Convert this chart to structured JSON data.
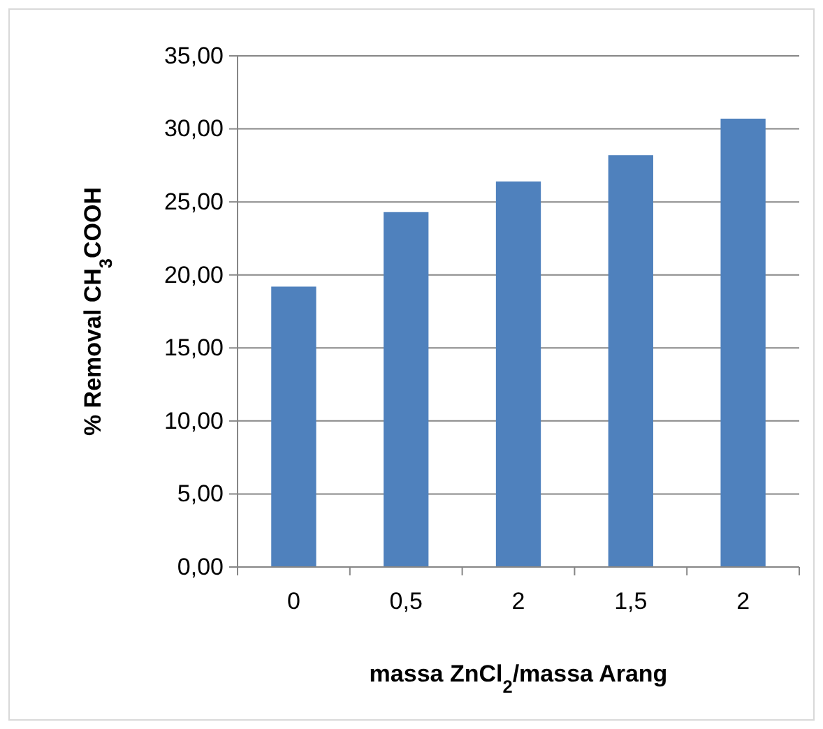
{
  "chart_data": {
    "type": "bar",
    "xlabel": "massa ZnCl$_{2}$/massa Arang",
    "ylabel": "% Removal CH$_{3}$COOH",
    "categories": [
      "0",
      "0,5",
      "2",
      "1,5",
      "2"
    ],
    "values": [
      19.2,
      24.3,
      26.4,
      28.2,
      30.7
    ],
    "color": "#4f81bd",
    "ylim": [
      0,
      35
    ],
    "yticks": [
      {
        "value": 0,
        "label": "0,00"
      },
      {
        "value": 5,
        "label": "5,00"
      },
      {
        "value": 10,
        "label": "10,00"
      },
      {
        "value": 15,
        "label": "15,00"
      },
      {
        "value": 20,
        "label": "20,00"
      },
      {
        "value": 25,
        "label": "25,00"
      },
      {
        "value": 30,
        "label": "30,00"
      },
      {
        "value": 35,
        "label": "35,00"
      }
    ],
    "grid": "y"
  }
}
